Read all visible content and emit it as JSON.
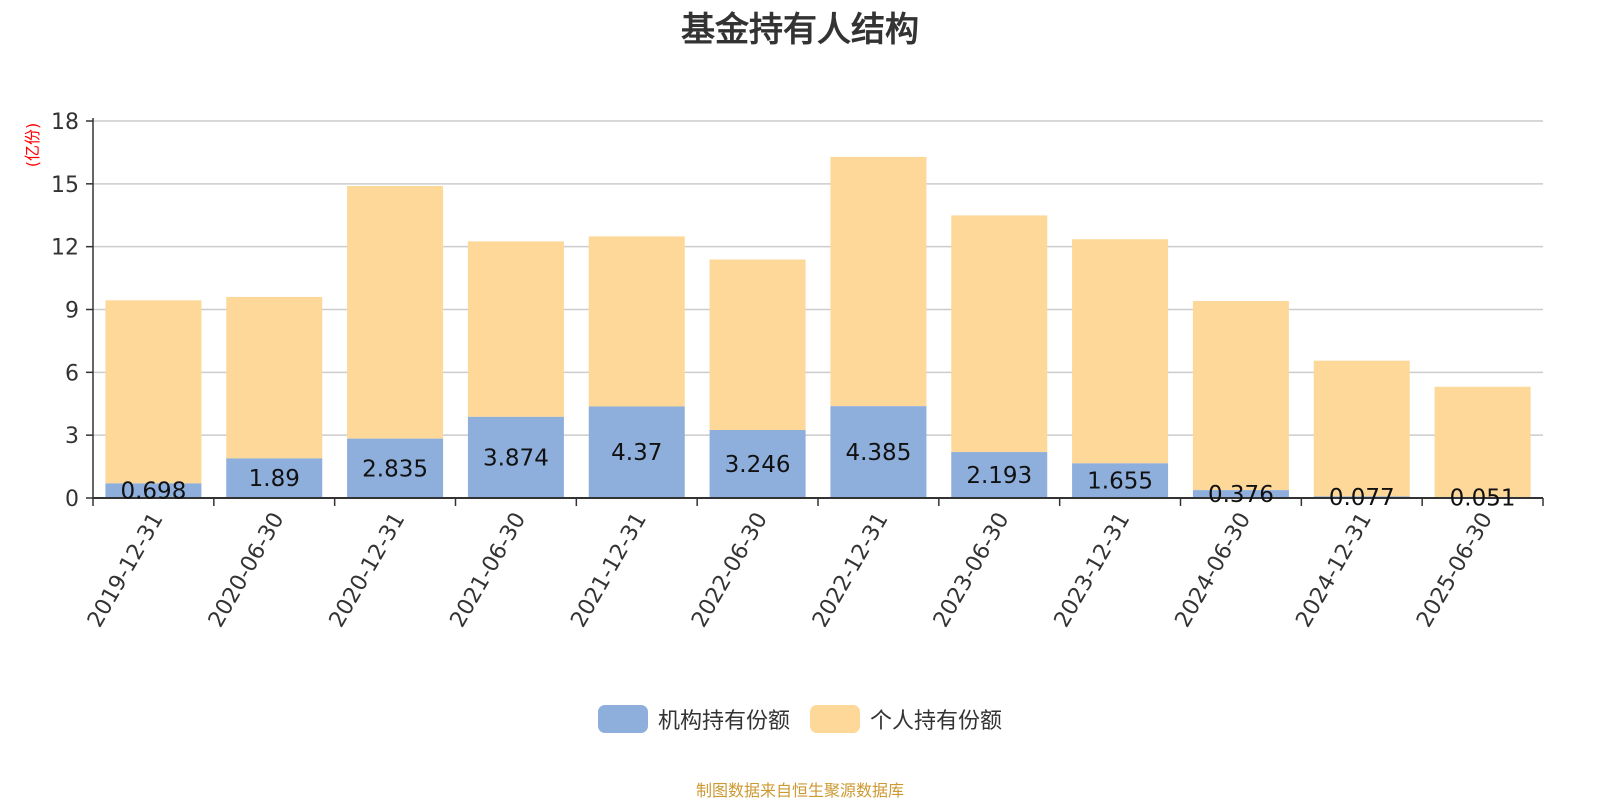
{
  "chart_data": {
    "type": "bar",
    "stacked": true,
    "title": "基金持有人结构",
    "ylabel": "(亿份)",
    "ylim": [
      0,
      18
    ],
    "yticks": [
      0,
      3,
      6,
      9,
      12,
      15,
      18
    ],
    "grid": true,
    "legend_position": "bottom",
    "categories": [
      "2019-12-31",
      "2020-06-30",
      "2020-12-31",
      "2021-06-30",
      "2021-12-31",
      "2022-06-30",
      "2022-12-31",
      "2023-06-30",
      "2023-12-31",
      "2024-06-30",
      "2024-12-31",
      "2025-06-30"
    ],
    "series": [
      {
        "name": "机构持有份额",
        "color": "#8eaedc",
        "values": [
          0.698,
          1.89,
          2.835,
          3.874,
          4.37,
          3.246,
          4.385,
          2.193,
          1.655,
          0.376,
          0.077,
          0.051
        ],
        "labels": [
          "0.698",
          "1.89",
          "2.835",
          "3.874",
          "4.37",
          "3.246",
          "4.385",
          "2.193",
          "1.655",
          "0.376",
          "0.077",
          "0.051"
        ]
      },
      {
        "name": "个人持有份额",
        "color": "#fdd898",
        "values": [
          8.74,
          7.71,
          12.06,
          8.38,
          8.12,
          8.14,
          11.9,
          11.3,
          10.7,
          9.03,
          6.48,
          5.26
        ]
      }
    ],
    "colors": {
      "axis": "#333333",
      "grid": "#cccccc",
      "ylabel": "#ff0000",
      "tick_text": "#333333"
    }
  },
  "source_text": "制图数据来自恒生聚源数据库",
  "source_color": "#cc9933"
}
